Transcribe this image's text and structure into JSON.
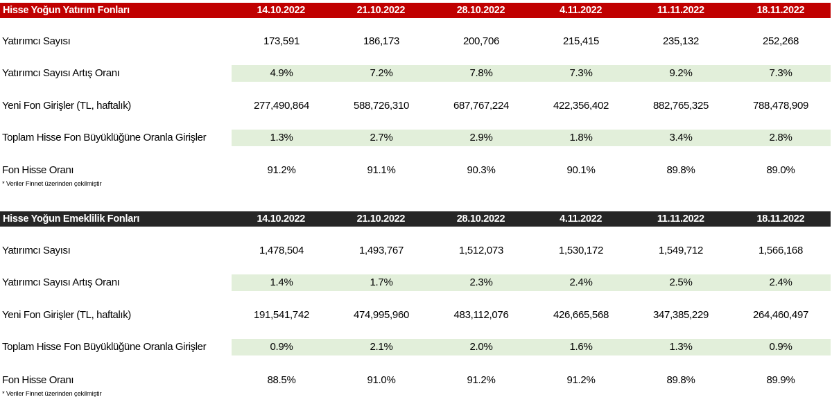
{
  "tables": [
    {
      "title": "Hisse Yoğun Yatırım Fonları",
      "dates": [
        "14.10.2022",
        "21.10.2022",
        "28.10.2022",
        "4.11.2022",
        "11.11.2022",
        "18.11.2022"
      ],
      "rows": [
        {
          "label": "Yatırımcı Sayısı",
          "values": [
            "173,591",
            "186,173",
            "200,706",
            "215,415",
            "235,132",
            "252,268"
          ]
        },
        {
          "label": "Yatırımcı Sayısı Artış Oranı",
          "values": [
            "4.9%",
            "7.2%",
            "7.8%",
            "7.3%",
            "9.2%",
            "7.3%"
          ]
        },
        {
          "label": "Yeni Fon Girişler (TL, haftalık)",
          "values": [
            "277,490,864",
            "588,726,310",
            "687,767,224",
            "422,356,402",
            "882,765,325",
            "788,478,909"
          ]
        },
        {
          "label": "Toplam Hisse Fon Büyüklüğüne Oranla Girişler",
          "values": [
            "1.3%",
            "2.7%",
            "2.9%",
            "1.8%",
            "3.4%",
            "2.8%"
          ]
        },
        {
          "label": "Fon Hisse Oranı",
          "values": [
            "91.2%",
            "91.1%",
            "90.3%",
            "90.1%",
            "89.8%",
            "89.0%"
          ]
        }
      ],
      "note": "* Veriler Finnet üzerinden çekilmiştir"
    },
    {
      "title": "Hisse Yoğun Emeklilik Fonları",
      "dates": [
        "14.10.2022",
        "21.10.2022",
        "28.10.2022",
        "4.11.2022",
        "11.11.2022",
        "18.11.2022"
      ],
      "rows": [
        {
          "label": "Yatırımcı Sayısı",
          "values": [
            "1,478,504",
            "1,493,767",
            "1,512,073",
            "1,530,172",
            "1,549,712",
            "1,566,168"
          ]
        },
        {
          "label": "Yatırımcı Sayısı Artış Oranı",
          "values": [
            "1.4%",
            "1.7%",
            "2.3%",
            "2.4%",
            "2.5%",
            "2.4%"
          ]
        },
        {
          "label": "Yeni Fon Girişler (TL, haftalık)",
          "values": [
            "191,541,742",
            "474,995,960",
            "483,112,076",
            "426,665,568",
            "347,385,229",
            "264,460,497"
          ]
        },
        {
          "label": "Toplam Hisse Fon Büyüklüğüne Oranla Girişler",
          "values": [
            "0.9%",
            "2.1%",
            "2.0%",
            "1.6%",
            "1.3%",
            "0.9%"
          ]
        },
        {
          "label": "Fon Hisse Oranı",
          "values": [
            "88.5%",
            "91.0%",
            "91.2%",
            "91.2%",
            "89.8%",
            "89.9%"
          ]
        }
      ],
      "note": "* Veriler Finnet üzerinden çekilmiştir"
    }
  ],
  "colors": {
    "header_1": "#c00000",
    "header_2": "#262626",
    "shaded_row": "#e2efda"
  }
}
